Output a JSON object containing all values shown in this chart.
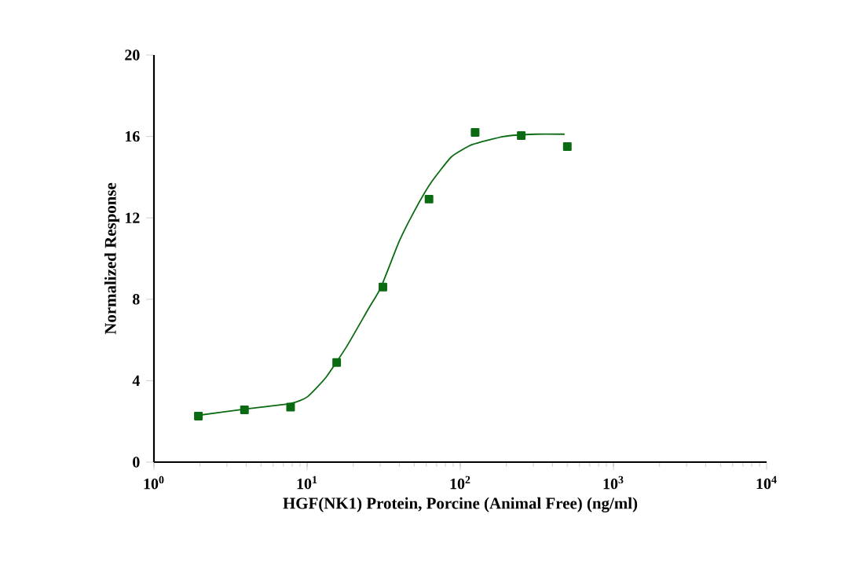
{
  "chart_data": {
    "type": "scatter",
    "xlabel": "HGF(NK1) Protein, Porcine (Animal Free)  (ng/ml)",
    "ylabel": "Normalized Response",
    "log": "x",
    "grid": false,
    "xlim": [
      1,
      10000
    ],
    "ylim": [
      0,
      20
    ],
    "xticks": [
      {
        "value": 1,
        "label": "10$^{0}$"
      },
      {
        "value": 10,
        "label": "10$^{1}$"
      },
      {
        "value": 100,
        "label": "10$^{2}$"
      },
      {
        "value": 1000,
        "label": "10$^{3}$"
      },
      {
        "value": 10000,
        "label": "10$^{4}$"
      }
    ],
    "yticks": [
      0,
      4,
      8,
      12,
      16,
      20
    ],
    "series": [
      {
        "marker": "square",
        "color": "#0b6b12",
        "x": [
          1.95,
          3.9,
          7.8,
          15.6,
          31.25,
          62.5,
          125,
          250,
          500
        ],
        "values": [
          2.26,
          2.57,
          2.7,
          4.89,
          8.6,
          12.92,
          16.2,
          16.04,
          15.5
        ]
      },
      {
        "type": "line",
        "marker": "none",
        "line_style": "solid",
        "color": "#0b6b12",
        "x": [
          1.95,
          3.9,
          7.8,
          10,
          13.3,
          18.2,
          25,
          30.4,
          40,
          50.7,
          64,
          87.6,
          120,
          193,
          310,
          480
        ],
        "values": [
          2.3,
          2.6,
          2.88,
          3.2,
          4.17,
          5.7,
          7.5,
          8.6,
          10.86,
          12.4,
          13.7,
          15.0,
          15.6,
          16.0,
          16.11,
          16.11
        ]
      }
    ]
  }
}
